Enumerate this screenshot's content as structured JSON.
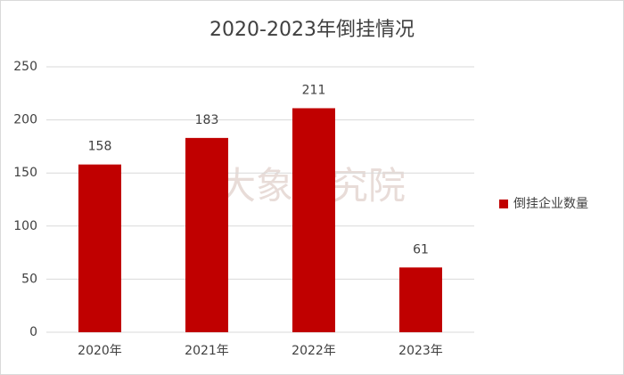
{
  "chart_data": {
    "type": "bar",
    "title": "2020-2023年倒挂情况",
    "categories": [
      "2020年",
      "2021年",
      "2022年",
      "2023年"
    ],
    "series": [
      {
        "name": "倒挂企业数量",
        "color": "#c00000",
        "values": [
          158,
          183,
          211,
          61
        ]
      }
    ],
    "ylim": [
      0,
      250
    ],
    "yticks": [
      0,
      50,
      100,
      150,
      200,
      250
    ],
    "grid": true,
    "legend": "right",
    "watermark": "大象研究院"
  }
}
